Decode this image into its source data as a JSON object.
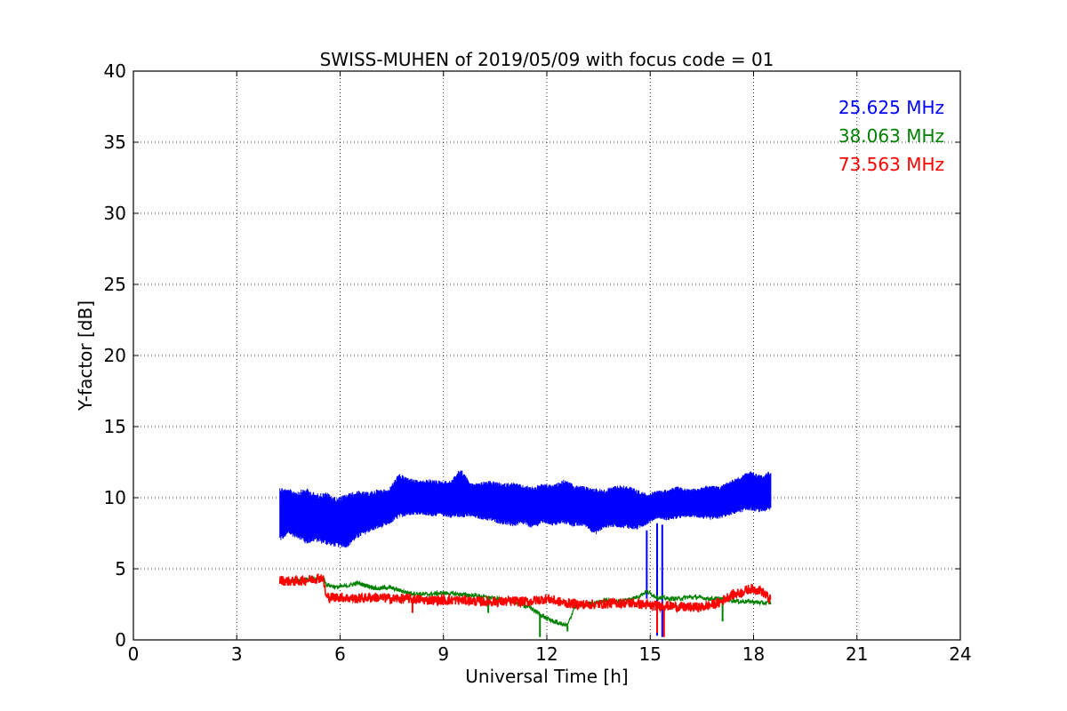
{
  "chart_data": {
    "type": "line",
    "title": "SWISS-MUHEN of 2019/05/09 with focus code = 01",
    "xlabel": "Universal Time [h]",
    "ylabel": "Y-factor [dB]",
    "xlim": [
      0,
      24
    ],
    "ylim": [
      0,
      40
    ],
    "xticks": [
      0,
      3,
      6,
      9,
      12,
      15,
      18,
      21,
      24
    ],
    "yticks": [
      0,
      5,
      10,
      15,
      20,
      25,
      30,
      35,
      40
    ],
    "grid": true,
    "legend_position": "top-right",
    "series": [
      {
        "name": "25.625 MHz",
        "color": "#0000ff",
        "x": [
          4.25,
          4.5,
          4.8,
          5.0,
          5.3,
          5.6,
          5.9,
          6.2,
          6.5,
          6.8,
          7.1,
          7.4,
          7.7,
          8.0,
          8.3,
          8.6,
          8.9,
          9.2,
          9.5,
          9.8,
          10.1,
          10.4,
          10.7,
          11.0,
          11.3,
          11.6,
          11.9,
          12.2,
          12.5,
          12.8,
          13.1,
          13.4,
          13.7,
          14.0,
          14.3,
          14.6,
          14.9,
          15.2,
          15.5,
          15.8,
          16.1,
          16.4,
          16.7,
          17.0,
          17.3,
          17.6,
          17.9,
          18.2,
          18.5
        ],
        "y_high": [
          10.8,
          10.6,
          10.5,
          10.7,
          10.3,
          10.4,
          10.0,
          10.3,
          10.5,
          10.4,
          10.6,
          10.6,
          11.7,
          11.4,
          11.2,
          11.3,
          11.2,
          11.2,
          12.1,
          11.0,
          11.1,
          11.2,
          11.0,
          11.1,
          10.9,
          10.8,
          11.0,
          10.9,
          11.3,
          10.9,
          10.8,
          10.7,
          10.6,
          10.9,
          10.9,
          10.6,
          10.3,
          10.5,
          10.6,
          10.8,
          10.6,
          10.7,
          10.9,
          10.8,
          11.2,
          11.5,
          11.9,
          11.6,
          11.9
        ],
        "y_low": [
          6.2,
          6.8,
          6.5,
          6.0,
          6.3,
          6.0,
          5.9,
          5.8,
          6.5,
          7.0,
          7.3,
          7.6,
          8.0,
          8.3,
          8.4,
          8.2,
          8.3,
          8.1,
          8.0,
          8.2,
          8.0,
          7.8,
          7.6,
          7.4,
          7.6,
          7.3,
          7.7,
          7.5,
          7.6,
          7.4,
          7.5,
          6.8,
          7.4,
          7.4,
          7.3,
          7.2,
          7.7,
          8.2,
          8.0,
          8.1,
          8.3,
          8.2,
          8.0,
          8.1,
          8.3,
          8.5,
          8.6,
          8.5,
          8.6
        ],
        "spikes": [
          {
            "x": 14.9,
            "y": 2.9
          },
          {
            "x": 15.2,
            "y": 0.3
          },
          {
            "x": 15.35,
            "y": 0.2
          }
        ]
      },
      {
        "name": "38.063 MHz",
        "color": "#008000",
        "x": [
          4.25,
          4.8,
          5.3,
          5.5,
          5.6,
          5.9,
          6.2,
          6.5,
          6.8,
          7.1,
          7.4,
          7.7,
          8.0,
          8.5,
          9.0,
          9.5,
          10.0,
          10.5,
          11.0,
          11.5,
          11.8,
          12.0,
          12.3,
          12.6,
          12.8,
          13.1,
          13.4,
          13.7,
          14.0,
          14.3,
          14.6,
          14.9,
          15.2,
          15.5,
          15.8,
          16.1,
          16.4,
          16.7,
          17.0,
          17.3,
          17.6,
          17.9,
          18.2,
          18.5
        ],
        "y": [
          4.1,
          4.2,
          4.3,
          4.4,
          3.9,
          3.7,
          3.8,
          4.0,
          3.8,
          3.6,
          3.7,
          3.5,
          3.3,
          3.2,
          3.3,
          3.2,
          3.1,
          2.9,
          2.7,
          2.3,
          1.8,
          1.5,
          1.2,
          1.0,
          2.3,
          2.5,
          2.6,
          2.8,
          2.7,
          2.8,
          3.0,
          3.4,
          3.0,
          2.9,
          2.9,
          3.0,
          3.0,
          2.9,
          2.9,
          2.8,
          2.7,
          2.7,
          2.6,
          2.6
        ],
        "spikes": [
          {
            "x": 10.3,
            "y": 1.9
          },
          {
            "x": 11.8,
            "y": 0.2
          },
          {
            "x": 12.6,
            "y": 0.6
          },
          {
            "x": 17.1,
            "y": 1.3
          }
        ]
      },
      {
        "name": "73.563 MHz",
        "color": "#ff0000",
        "x": [
          4.25,
          4.6,
          5.0,
          5.3,
          5.5,
          5.6,
          6.0,
          6.5,
          7.0,
          7.5,
          8.0,
          8.5,
          9.0,
          9.5,
          10.0,
          10.5,
          11.0,
          11.5,
          12.0,
          12.5,
          13.0,
          13.5,
          14.0,
          14.5,
          15.0,
          15.5,
          16.0,
          16.5,
          17.0,
          17.3,
          17.6,
          17.9,
          18.2,
          18.5
        ],
        "y": [
          4.2,
          4.1,
          4.2,
          4.3,
          4.4,
          3.0,
          3.0,
          2.9,
          3.0,
          2.9,
          2.9,
          2.8,
          2.8,
          2.8,
          2.7,
          2.7,
          2.7,
          2.7,
          2.9,
          2.6,
          2.5,
          2.5,
          2.6,
          2.6,
          2.4,
          2.4,
          2.3,
          2.3,
          2.6,
          3.1,
          3.3,
          3.6,
          3.5,
          2.8
        ],
        "y_band": 0.35,
        "spikes": [
          {
            "x": 15.2,
            "y": 0.5
          },
          {
            "x": 15.4,
            "y": 0.2
          },
          {
            "x": 8.1,
            "y": 1.9
          }
        ]
      }
    ]
  }
}
